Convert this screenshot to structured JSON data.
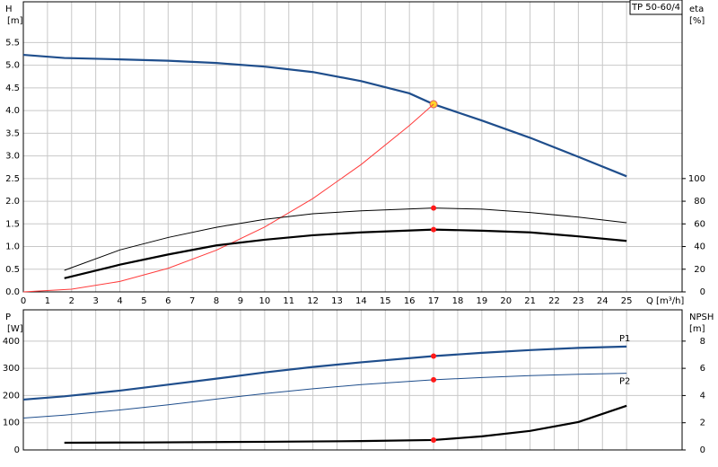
{
  "chart_data": [
    {
      "type": "line",
      "title": "TP 50-60/4",
      "ylabel": [
        "H",
        "[m]"
      ],
      "y2label": [
        "eta",
        "[%]"
      ],
      "xlabel": "Q [m³/h]",
      "xlim": [
        0,
        27.3
      ],
      "xticks": [
        0,
        1,
        2,
        3,
        4,
        5,
        6,
        7,
        8,
        9,
        10,
        11,
        12,
        13,
        14,
        15,
        16,
        17,
        18,
        19,
        20,
        21,
        22,
        23,
        24,
        25
      ],
      "xtick_labels": true,
      "ylim": [
        0,
        6.4
      ],
      "yticks": [
        {
          "value": 0,
          "label": "0.0"
        },
        0.5,
        {
          "value": 1,
          "label": "1.0"
        },
        1.5,
        {
          "value": 2,
          "label": "2.0"
        },
        2.5,
        {
          "value": 3,
          "label": "3.0"
        },
        3.5,
        {
          "value": 4,
          "label": "4.0"
        },
        4.5,
        {
          "value": 5,
          "label": "5.0"
        },
        5.5
      ],
      "y2lim": [
        0,
        256
      ],
      "y2ticks": [
        0,
        20,
        40,
        60,
        80,
        100
      ],
      "grid": true,
      "duty_x": 17,
      "series": [
        {
          "color": "#1f4e8c",
          "style": "thick",
          "marker": "yellow",
          "x": [
            0,
            1.7,
            4,
            6,
            8,
            10,
            12,
            14,
            16,
            17,
            19,
            21,
            23,
            25
          ],
          "values": [
            5.23,
            5.16,
            5.13,
            5.1,
            5.05,
            4.97,
            4.85,
            4.65,
            4.38,
            4.14,
            3.78,
            3.4,
            2.98,
            2.55
          ]
        },
        {
          "color": "#ff3b3b",
          "style": "thin",
          "x": [
            0,
            2,
            4,
            6,
            8,
            10,
            12,
            14,
            16,
            17
          ],
          "values": [
            0,
            0.06,
            0.23,
            0.52,
            0.92,
            1.43,
            2.06,
            2.81,
            3.67,
            4.14
          ]
        },
        {
          "color": "#000000",
          "style": "thin",
          "axis": "y2",
          "marker": "red",
          "x": [
            1.7,
            4,
            6,
            8,
            10,
            12,
            14,
            17,
            19,
            21,
            23,
            25
          ],
          "values": [
            19,
            37,
            48,
            57,
            64,
            69,
            71.5,
            74,
            73,
            70,
            66,
            61
          ]
        },
        {
          "color": "#000000",
          "style": "thick",
          "axis": "y2",
          "marker": "red",
          "x": [
            1.7,
            4,
            6,
            8,
            10,
            12,
            14,
            17,
            19,
            21,
            23,
            25
          ],
          "values": [
            12,
            24,
            33,
            41,
            46,
            50,
            52.5,
            55,
            54,
            52.5,
            49,
            45
          ]
        }
      ]
    },
    {
      "type": "line",
      "ylabel": [
        "P",
        "[W]"
      ],
      "y2label": [
        "NPSH",
        "[m]"
      ],
      "xlim": [
        0,
        27.3
      ],
      "xticks": [
        0,
        1,
        2,
        3,
        4,
        5,
        6,
        7,
        8,
        9,
        10,
        11,
        12,
        13,
        14,
        15,
        16,
        17,
        18,
        19,
        20,
        21,
        22,
        23,
        24,
        25
      ],
      "xtick_labels": false,
      "ylim": [
        0,
        515
      ],
      "yticks": [
        0,
        100,
        200,
        300,
        400
      ],
      "y2lim": [
        0,
        10.3
      ],
      "y2ticks": [
        0,
        2,
        4,
        6,
        8
      ],
      "grid": true,
      "duty_x": 17,
      "series": [
        {
          "name": "P1",
          "label_position": "above",
          "color": "#1f4e8c",
          "style": "thick",
          "marker": "red",
          "x": [
            0,
            1.7,
            4,
            6,
            8,
            10,
            12,
            14,
            17,
            19,
            21,
            23,
            25
          ],
          "values": [
            185,
            197,
            218,
            240,
            262,
            285,
            305,
            322,
            345,
            357,
            367,
            375,
            380
          ]
        },
        {
          "name": "P2",
          "label_position": "below",
          "color": "#1f4e8c",
          "style": "thin",
          "marker": "red",
          "x": [
            0,
            1.7,
            4,
            6,
            8,
            10,
            12,
            14,
            17,
            19,
            21,
            23,
            25
          ],
          "values": [
            117,
            128,
            147,
            166,
            187,
            207,
            225,
            240,
            258,
            266,
            273,
            278,
            282
          ]
        },
        {
          "color": "#000000",
          "style": "thick",
          "axis": "y2",
          "marker": "red",
          "x": [
            1.7,
            5,
            10,
            14,
            17,
            19,
            21,
            23,
            25
          ],
          "values": [
            0.53,
            0.55,
            0.6,
            0.65,
            0.73,
            1.0,
            1.4,
            2.05,
            3.25
          ]
        }
      ]
    }
  ]
}
